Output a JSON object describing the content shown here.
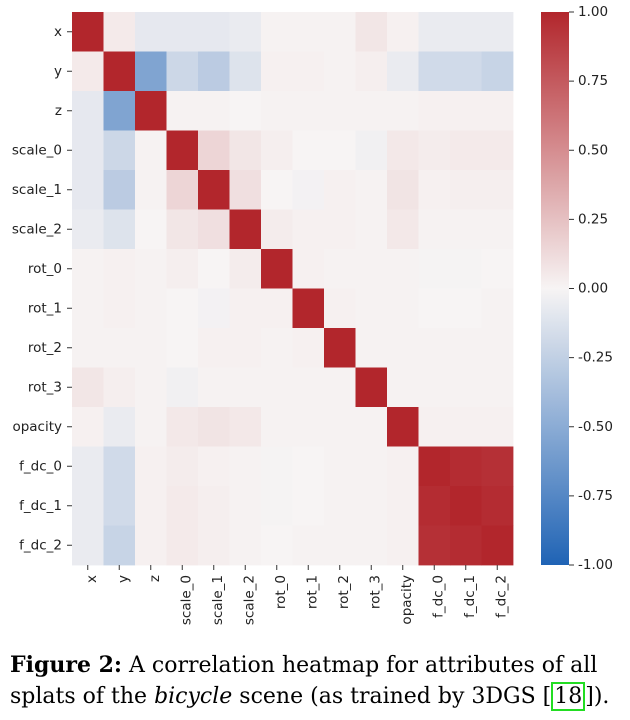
{
  "chart_data": {
    "type": "heatmap",
    "title": "",
    "xlabel": "",
    "ylabel": "",
    "labels": [
      "x",
      "y",
      "z",
      "scale_0",
      "scale_1",
      "scale_2",
      "rot_0",
      "rot_1",
      "rot_2",
      "rot_3",
      "opacity",
      "f_dc_0",
      "f_dc_1",
      "f_dc_2"
    ],
    "matrix": [
      [
        1.0,
        0.05,
        -0.08,
        -0.08,
        -0.08,
        -0.06,
        0.01,
        0.01,
        0.01,
        0.07,
        0.02,
        -0.06,
        -0.06,
        -0.06
      ],
      [
        0.05,
        1.0,
        -0.55,
        -0.2,
        -0.28,
        -0.12,
        0.02,
        0.02,
        0.01,
        0.03,
        -0.06,
        -0.18,
        -0.18,
        -0.22
      ],
      [
        -0.08,
        -0.55,
        1.0,
        0.01,
        0.01,
        0.0,
        0.01,
        0.01,
        0.01,
        0.01,
        0.01,
        0.02,
        0.02,
        0.02
      ],
      [
        -0.08,
        -0.2,
        0.01,
        1.0,
        0.15,
        0.07,
        0.03,
        0.0,
        0.0,
        -0.03,
        0.06,
        0.04,
        0.05,
        0.05
      ],
      [
        -0.08,
        -0.28,
        0.01,
        0.15,
        1.0,
        0.1,
        0.0,
        -0.02,
        0.02,
        0.01,
        0.08,
        0.02,
        0.03,
        0.03
      ],
      [
        -0.06,
        -0.12,
        0.0,
        0.07,
        0.1,
        1.0,
        0.04,
        0.02,
        0.02,
        0.01,
        0.06,
        0.01,
        0.01,
        0.01
      ],
      [
        0.01,
        0.02,
        0.01,
        0.03,
        0.0,
        0.04,
        1.0,
        0.02,
        0.01,
        0.01,
        0.01,
        -0.01,
        -0.01,
        0.0
      ],
      [
        0.01,
        0.02,
        0.01,
        0.0,
        -0.02,
        0.02,
        0.02,
        1.0,
        0.02,
        0.01,
        0.01,
        0.0,
        0.0,
        0.01
      ],
      [
        0.01,
        0.01,
        0.01,
        0.0,
        0.02,
        0.02,
        0.01,
        0.02,
        1.0,
        0.01,
        0.01,
        0.01,
        0.01,
        0.01
      ],
      [
        0.07,
        0.03,
        0.01,
        -0.03,
        0.01,
        0.01,
        0.01,
        0.01,
        0.01,
        1.0,
        0.01,
        0.01,
        0.01,
        0.01
      ],
      [
        0.02,
        -0.06,
        0.01,
        0.06,
        0.08,
        0.06,
        0.01,
        0.01,
        0.01,
        0.01,
        1.0,
        0.02,
        0.02,
        0.02
      ],
      [
        -0.06,
        -0.18,
        0.02,
        0.04,
        0.02,
        0.01,
        -0.01,
        0.0,
        0.01,
        0.01,
        0.02,
        1.0,
        0.97,
        0.95
      ],
      [
        -0.06,
        -0.18,
        0.02,
        0.05,
        0.03,
        0.01,
        -0.01,
        0.0,
        0.01,
        0.01,
        0.02,
        0.97,
        1.0,
        0.97
      ],
      [
        -0.06,
        -0.22,
        0.02,
        0.05,
        0.03,
        0.01,
        0.0,
        0.01,
        0.01,
        0.01,
        0.02,
        0.95,
        0.97,
        1.0
      ]
    ],
    "colorbar": {
      "range": [
        -1.0,
        1.0
      ],
      "ticks": [
        "1.00",
        "0.75",
        "0.50",
        "0.25",
        "0.00",
        "-0.25",
        "-0.50",
        "-0.75",
        "-1.00"
      ],
      "colormap": "blue-white-red",
      "low_color": "#1f63b5",
      "mid_color": "#f7f4f4",
      "high_color": "#b2262c"
    },
    "grid": false,
    "legend": "right"
  },
  "caption": {
    "label": "Figure 2:",
    "text_before": " A correlation heatmap for attributes of all splats of the ",
    "italic": "bicycle",
    "text_middle": " scene (as trained by 3DGS [",
    "ref": "18",
    "text_after": "])."
  }
}
